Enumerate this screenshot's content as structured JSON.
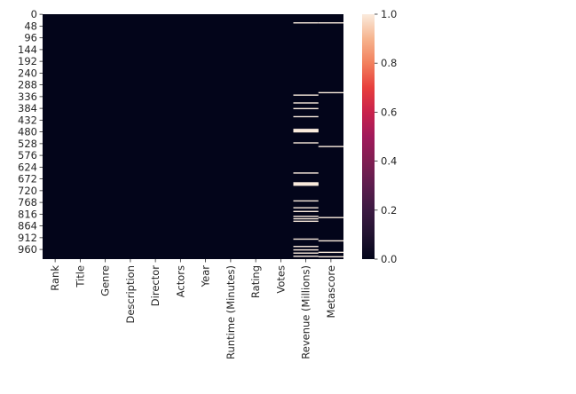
{
  "chart_data": {
    "type": "heatmap",
    "title": "",
    "xlabel": "",
    "ylabel": "",
    "columns": [
      "Rank",
      "Title",
      "Genre",
      "Description",
      "Director",
      "Actors",
      "Year",
      "Runtime (Minutes)",
      "Rating",
      "Votes",
      "Revenue (Millions)",
      "Metascore"
    ],
    "y_tick_labels": [
      "0",
      "48",
      "96",
      "144",
      "192",
      "240",
      "288",
      "336",
      "384",
      "432",
      "480",
      "528",
      "576",
      "624",
      "672",
      "720",
      "768",
      "816",
      "864",
      "912",
      "960"
    ],
    "n_rows": 1000,
    "value_range": [
      0.0,
      1.0
    ],
    "colorbar": {
      "ticks": [
        "0.0",
        "0.2",
        "0.4",
        "0.6",
        "0.8",
        "1.0"
      ],
      "colormap": "rocket",
      "low_color": "#03051a",
      "high_color": "#faebdd"
    },
    "missing_value_rows": {
      "Revenue (Millions)": [
        35,
        330,
        362,
        385,
        418,
        470,
        472,
        474,
        476,
        478,
        480,
        525,
        648,
        688,
        690,
        692,
        694,
        696,
        698,
        762,
        790,
        805,
        825,
        835,
        845,
        918,
        948,
        962,
        975,
        988
      ],
      "Metascore": [
        35,
        320,
        540,
        830,
        925,
        972,
        990
      ]
    }
  }
}
